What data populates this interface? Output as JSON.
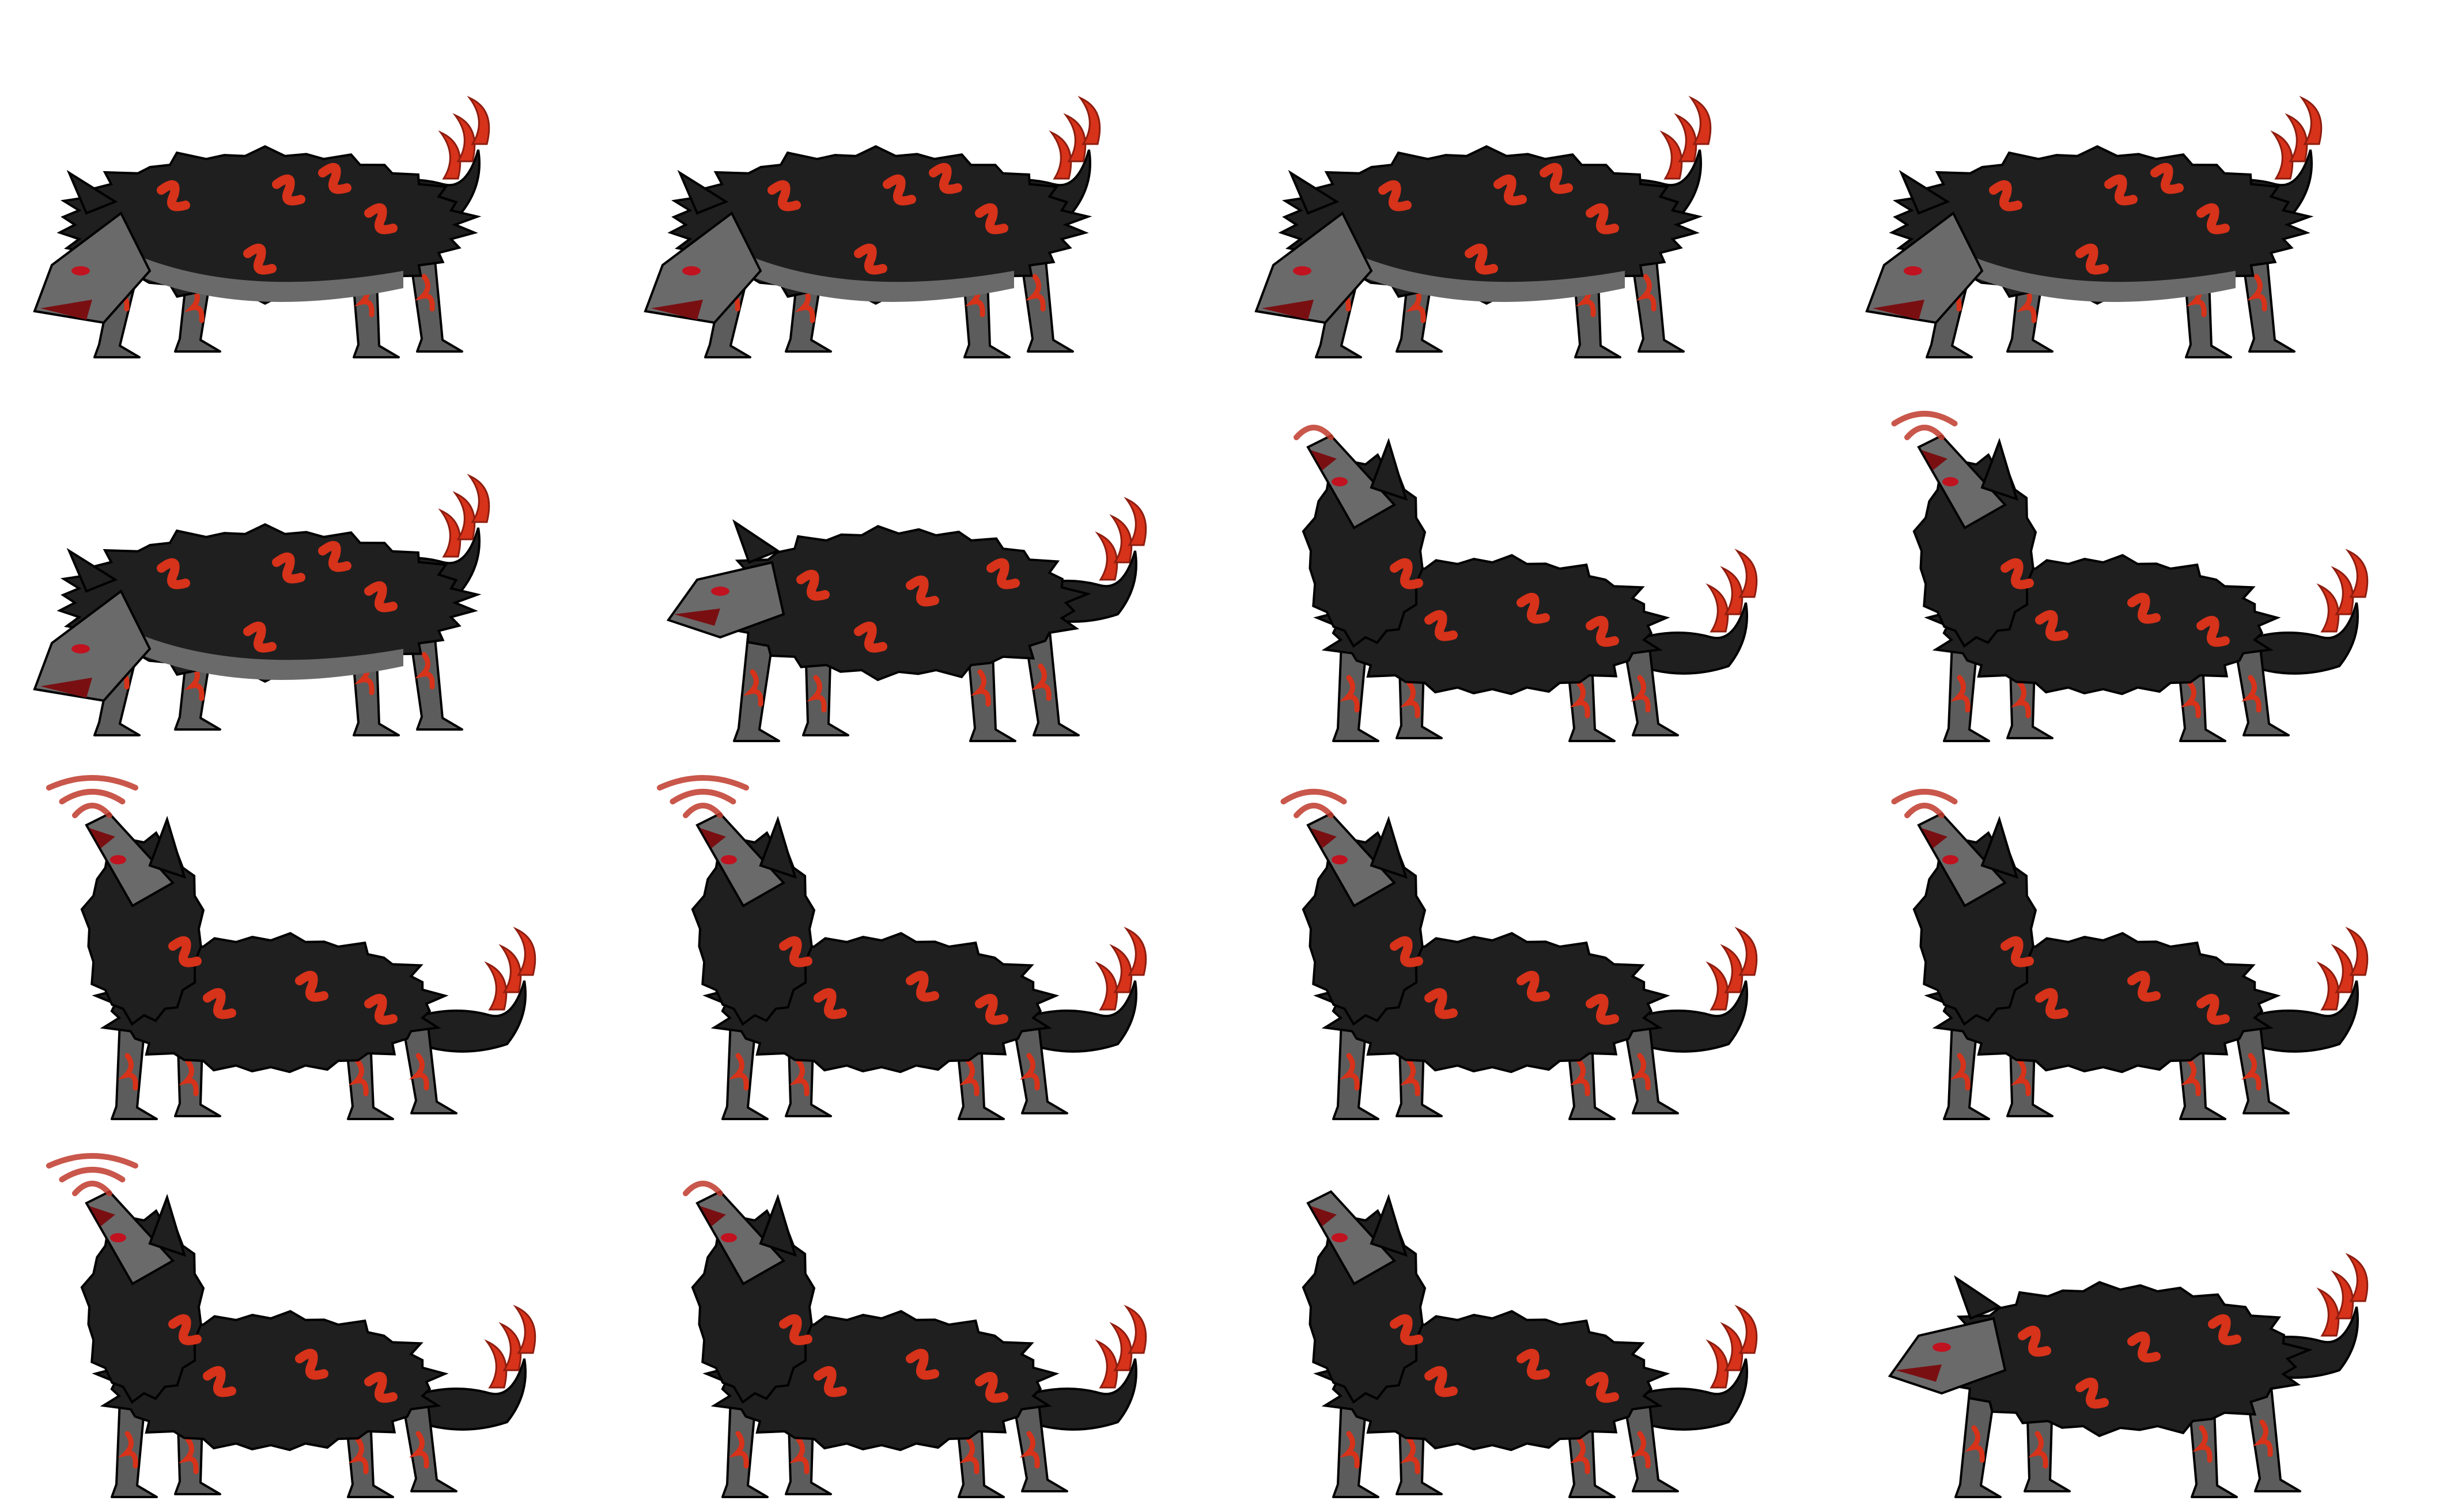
{
  "sprite_sheet": {
    "grid": {
      "columns": 4,
      "rows": 4
    },
    "colors": {
      "background": "#ffffff",
      "fur": "#1f1f1f",
      "fur_outline": "#000000",
      "under_fur": "#6a6a6a",
      "legs": "#5c5c5c",
      "flame_stripe": "#d7321a",
      "flame_dark": "#8e1d0f",
      "eye": "#c1121f",
      "howl_wave": "#c0392b"
    },
    "frames": [
      {
        "pose": "crouch-snarl",
        "waves": 0
      },
      {
        "pose": "crouch-snarl",
        "waves": 0
      },
      {
        "pose": "crouch-snarl",
        "waves": 0
      },
      {
        "pose": "crouch-snarl",
        "waves": 0
      },
      {
        "pose": "crouch-snarl",
        "waves": 0
      },
      {
        "pose": "stand-growl",
        "waves": 0
      },
      {
        "pose": "howl",
        "waves": 1
      },
      {
        "pose": "howl",
        "waves": 2
      },
      {
        "pose": "howl",
        "waves": 3
      },
      {
        "pose": "howl",
        "waves": 3
      },
      {
        "pose": "howl",
        "waves": 2
      },
      {
        "pose": "howl",
        "waves": 2
      },
      {
        "pose": "howl",
        "waves": 3
      },
      {
        "pose": "howl",
        "waves": 1
      },
      {
        "pose": "howl",
        "waves": 0
      },
      {
        "pose": "stand-growl",
        "waves": 0
      }
    ]
  }
}
